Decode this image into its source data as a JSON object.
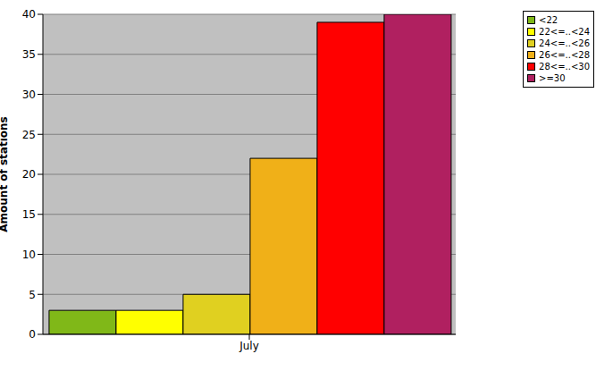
{
  "chart_data": {
    "type": "bar",
    "y_label": "Amount of stations",
    "categories": [
      "July"
    ],
    "series": [
      {
        "name": "<22",
        "color": "#80b818",
        "values": [
          3
        ]
      },
      {
        "name": "22<=..<24",
        "color": "#ffff00",
        "values": [
          3
        ]
      },
      {
        "name": "24<=..<26",
        "color": "#e0d020",
        "values": [
          5
        ]
      },
      {
        "name": "26<=..<28",
        "color": "#f0b018",
        "values": [
          22
        ]
      },
      {
        "name": "28<=..<30",
        "color": "#ff0000",
        "values": [
          39
        ]
      },
      {
        "name": ">=30",
        "color": "#b02060",
        "values": [
          40
        ]
      }
    ],
    "ylim": [
      0,
      40
    ],
    "yticks": [
      0,
      5,
      10,
      15,
      20,
      25,
      30,
      35,
      40
    ],
    "grid": true,
    "legend": "upper right"
  }
}
